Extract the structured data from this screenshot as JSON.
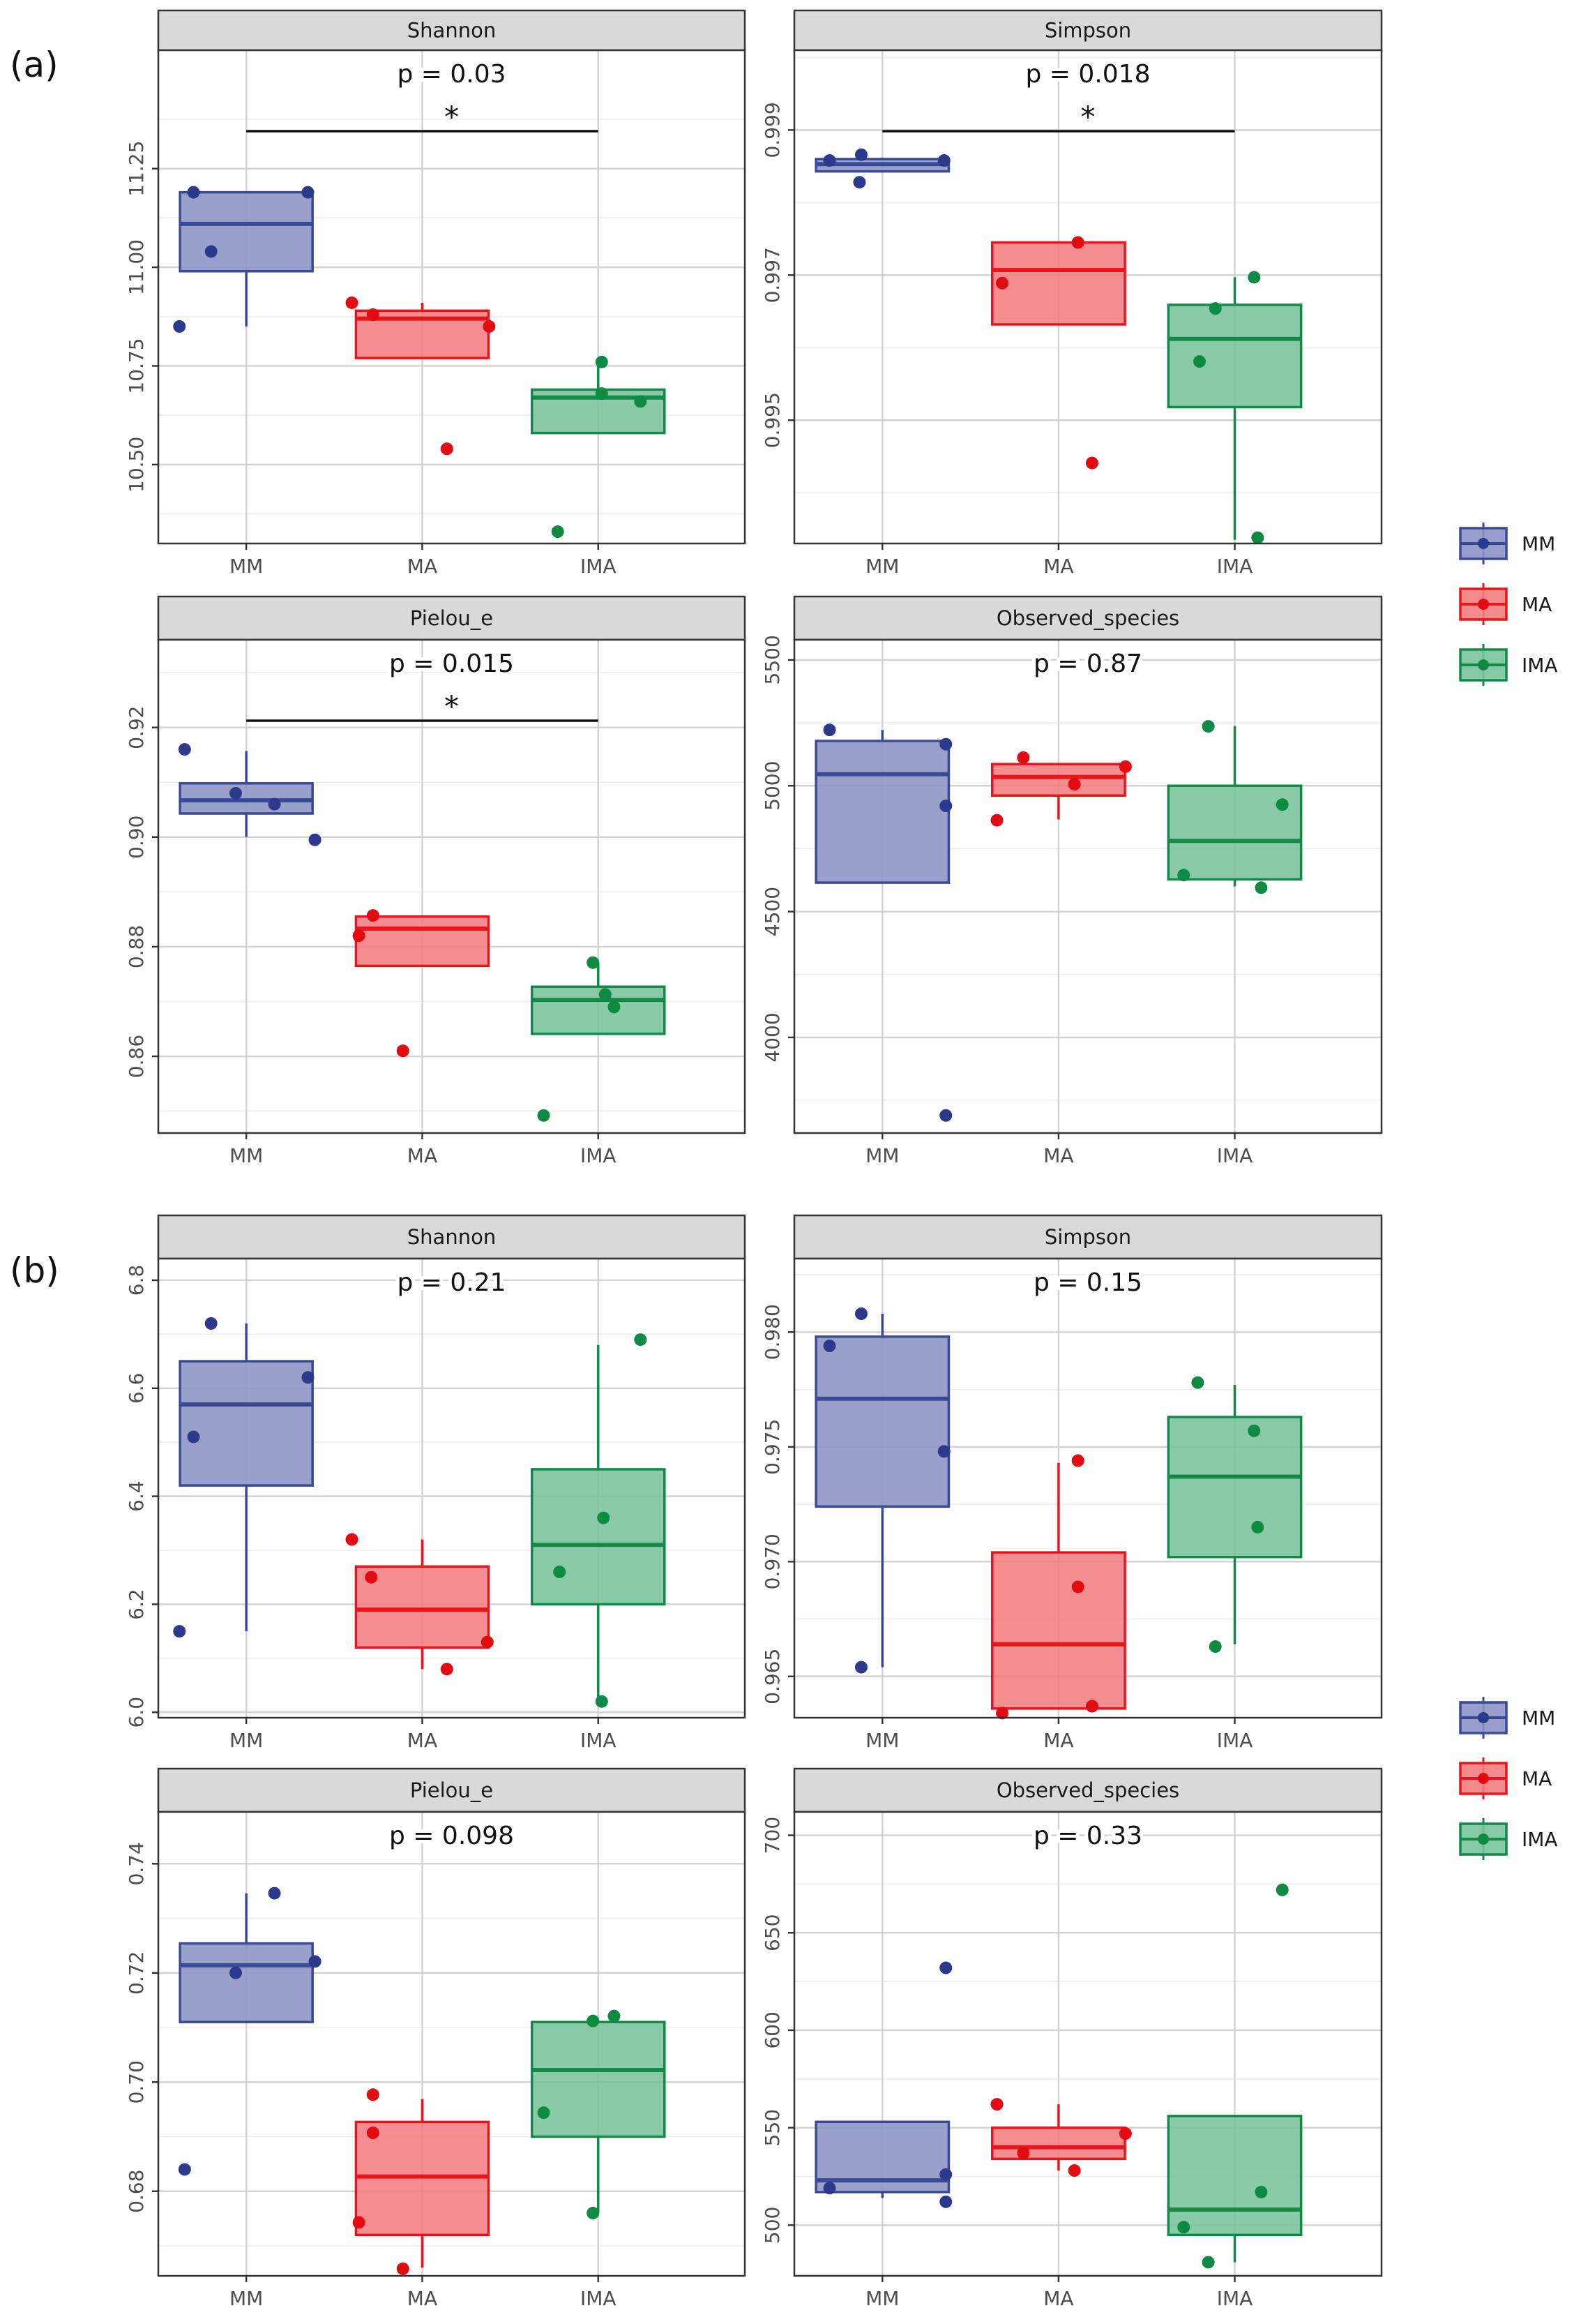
{
  "figure": {
    "part_labels": [
      "(a)",
      "(b)"
    ],
    "groups": [
      "MM",
      "MA",
      "IMA"
    ],
    "colors": {
      "MM": {
        "fill": "#8c93c5",
        "stroke": "#3b4a96",
        "point": "#2d3a8c"
      },
      "MA": {
        "fill": "#f27d80",
        "stroke": "#e8161c",
        "point": "#e20b12"
      },
      "IMA": {
        "fill": "#79c49b",
        "stroke": "#14894a",
        "point": "#0f8a45"
      }
    },
    "legend": [
      {
        "group": "MM",
        "label": "MM"
      },
      {
        "group": "MA",
        "label": "MA"
      },
      {
        "group": "IMA",
        "label": "IMA"
      }
    ],
    "significance_marker": "*"
  },
  "chart_data": [
    {
      "type": "boxplot",
      "part": "(a)",
      "title": "Shannon",
      "pvalue": "p = 0.03",
      "significant": true,
      "ylim": [
        10.3,
        11.55
      ],
      "yticks": [
        10.5,
        10.75,
        11.0,
        11.25
      ],
      "tick_labels": [
        "10.50",
        "10.75",
        "11.00",
        "11.25"
      ],
      "categories": [
        "MM",
        "MA",
        "IMA"
      ],
      "boxes": [
        {
          "group": "MM",
          "lower_whisker": 10.85,
          "q1": 10.99,
          "median": 11.11,
          "q3": 11.19,
          "upper_whisker": 11.19,
          "points": [
            {
              "x": -0.38,
              "y": 10.85
            },
            {
              "x": -0.3,
              "y": 11.19
            },
            {
              "x": -0.2,
              "y": 11.04
            },
            {
              "x": 0.35,
              "y": 11.19
            }
          ]
        },
        {
          "group": "MA",
          "lower_whisker": 10.77,
          "q1": 10.77,
          "median": 10.87,
          "q3": 10.89,
          "upper_whisker": 10.91,
          "points": [
            {
              "x": -0.4,
              "y": 10.91
            },
            {
              "x": -0.28,
              "y": 10.88
            },
            {
              "x": 0.14,
              "y": 10.54
            },
            {
              "x": 0.38,
              "y": 10.85
            }
          ]
        },
        {
          "group": "IMA",
          "lower_whisker": 10.58,
          "q1": 10.58,
          "median": 10.67,
          "q3": 10.69,
          "upper_whisker": 10.76,
          "points": [
            {
              "x": -0.23,
              "y": 10.33
            },
            {
              "x": 0.02,
              "y": 10.76
            },
            {
              "x": 0.02,
              "y": 10.68
            },
            {
              "x": 0.24,
              "y": 10.66
            }
          ]
        }
      ]
    },
    {
      "type": "boxplot",
      "part": "(a)",
      "title": "Simpson",
      "pvalue": "p = 0.018",
      "significant": true,
      "ylim": [
        0.9933,
        1.0001
      ],
      "yticks": [
        0.995,
        0.997,
        0.999
      ],
      "tick_labels": [
        "0.995",
        "0.997",
        "0.999"
      ],
      "categories": [
        "MM",
        "MA",
        "IMA"
      ],
      "boxes": [
        {
          "group": "MM",
          "lower_whisker": 0.99843,
          "q1": 0.99843,
          "median": 0.99853,
          "q3": 0.9986,
          "upper_whisker": 0.99862,
          "points": [
            {
              "x": -0.3,
              "y": 0.99858
            },
            {
              "x": -0.13,
              "y": 0.99828
            },
            {
              "x": -0.12,
              "y": 0.99866
            },
            {
              "x": 0.35,
              "y": 0.99858
            }
          ]
        },
        {
          "group": "MA",
          "lower_whisker": 0.99632,
          "q1": 0.99632,
          "median": 0.99707,
          "q3": 0.99745,
          "upper_whisker": 0.99745,
          "points": [
            {
              "x": -0.32,
              "y": 0.99689
            },
            {
              "x": 0.11,
              "y": 0.99745
            },
            {
              "x": 0.19,
              "y": 0.99441
            }
          ]
        },
        {
          "group": "IMA",
          "lower_whisker": 0.99335,
          "q1": 0.99518,
          "median": 0.99612,
          "q3": 0.99659,
          "upper_whisker": 0.99697,
          "points": [
            {
              "x": -0.2,
              "y": 0.99581
            },
            {
              "x": -0.11,
              "y": 0.99654
            },
            {
              "x": 0.11,
              "y": 0.99697
            },
            {
              "x": 0.13,
              "y": 0.99338
            }
          ]
        }
      ]
    },
    {
      "type": "boxplot",
      "part": "(a)",
      "title": "Pielou_e",
      "pvalue": "p = 0.015",
      "significant": true,
      "ylim": [
        0.846,
        0.936
      ],
      "yticks": [
        0.86,
        0.88,
        0.9,
        0.92
      ],
      "tick_labels": [
        "0.86",
        "0.88",
        "0.90",
        "0.92"
      ],
      "categories": [
        "MM",
        "MA",
        "IMA"
      ],
      "boxes": [
        {
          "group": "MM",
          "lower_whisker": 0.9,
          "q1": 0.9043,
          "median": 0.9067,
          "q3": 0.9098,
          "upper_whisker": 0.9157,
          "points": [
            {
              "x": -0.35,
              "y": 0.916
            },
            {
              "x": -0.06,
              "y": 0.908
            },
            {
              "x": 0.16,
              "y": 0.906
            },
            {
              "x": 0.39,
              "y": 0.8995
            }
          ]
        },
        {
          "group": "MA",
          "lower_whisker": 0.8765,
          "q1": 0.8765,
          "median": 0.8833,
          "q3": 0.8855,
          "upper_whisker": 0.8855,
          "points": [
            {
              "x": -0.36,
              "y": 0.882
            },
            {
              "x": -0.28,
              "y": 0.8857
            },
            {
              "x": -0.11,
              "y": 0.861
            }
          ]
        },
        {
          "group": "IMA",
          "lower_whisker": 0.8641,
          "q1": 0.8641,
          "median": 0.8703,
          "q3": 0.8727,
          "upper_whisker": 0.8771,
          "points": [
            {
              "x": -0.31,
              "y": 0.8492
            },
            {
              "x": -0.03,
              "y": 0.8771
            },
            {
              "x": 0.04,
              "y": 0.8713
            },
            {
              "x": 0.09,
              "y": 0.869
            }
          ]
        }
      ]
    },
    {
      "type": "boxplot",
      "part": "(a)",
      "title": "Observed_species",
      "pvalue": "p = 0.87",
      "significant": false,
      "ylim": [
        3620,
        5580
      ],
      "yticks": [
        4000,
        4500,
        5000,
        5500
      ],
      "tick_labels": [
        "4000",
        "4500",
        "5000",
        "5500"
      ],
      "categories": [
        "MM",
        "MA",
        "IMA"
      ],
      "boxes": [
        {
          "group": "MM",
          "lower_whisker": 4615,
          "q1": 4615,
          "median": 5046,
          "q3": 5178,
          "upper_whisker": 5222,
          "points": [
            {
              "x": -0.3,
              "y": 5222
            },
            {
              "x": 0.36,
              "y": 5165
            },
            {
              "x": 0.36,
              "y": 4920
            },
            {
              "x": 0.36,
              "y": 3690
            }
          ]
        },
        {
          "group": "MA",
          "lower_whisker": 4866,
          "q1": 4961,
          "median": 5035,
          "q3": 5086,
          "upper_whisker": 5086,
          "points": [
            {
              "x": -0.35,
              "y": 4863
            },
            {
              "x": -0.2,
              "y": 5112
            },
            {
              "x": 0.09,
              "y": 5006
            },
            {
              "x": 0.38,
              "y": 5076
            }
          ]
        },
        {
          "group": "IMA",
          "lower_whisker": 4600,
          "q1": 4628,
          "median": 4781,
          "q3": 5000,
          "upper_whisker": 5237,
          "points": [
            {
              "x": -0.29,
              "y": 4645
            },
            {
              "x": -0.15,
              "y": 5236
            },
            {
              "x": 0.15,
              "y": 4595
            },
            {
              "x": 0.27,
              "y": 4925
            }
          ]
        }
      ]
    },
    {
      "type": "boxplot",
      "part": "(b)",
      "title": "Shannon",
      "pvalue": "p = 0.21",
      "significant": false,
      "ylim": [
        5.99,
        6.84
      ],
      "yticks": [
        6.0,
        6.2,
        6.4,
        6.6,
        6.8
      ],
      "tick_labels": [
        "6.0",
        "6.2",
        "6.4",
        "6.6",
        "6.8"
      ],
      "categories": [
        "MM",
        "MA",
        "IMA"
      ],
      "boxes": [
        {
          "group": "MM",
          "lower_whisker": 6.15,
          "q1": 6.42,
          "median": 6.57,
          "q3": 6.65,
          "upper_whisker": 6.72,
          "points": [
            {
              "x": -0.38,
              "y": 6.15
            },
            {
              "x": -0.3,
              "y": 6.51
            },
            {
              "x": -0.2,
              "y": 6.72
            },
            {
              "x": 0.35,
              "y": 6.62
            }
          ]
        },
        {
          "group": "MA",
          "lower_whisker": 6.08,
          "q1": 6.12,
          "median": 6.19,
          "q3": 6.27,
          "upper_whisker": 6.32,
          "points": [
            {
              "x": -0.4,
              "y": 6.32
            },
            {
              "x": -0.29,
              "y": 6.25
            },
            {
              "x": 0.14,
              "y": 6.08
            },
            {
              "x": 0.37,
              "y": 6.13
            }
          ]
        },
        {
          "group": "IMA",
          "lower_whisker": 6.02,
          "q1": 6.2,
          "median": 6.31,
          "q3": 6.45,
          "upper_whisker": 6.68,
          "points": [
            {
              "x": -0.22,
              "y": 6.26
            },
            {
              "x": 0.02,
              "y": 6.02
            },
            {
              "x": 0.03,
              "y": 6.36
            },
            {
              "x": 0.24,
              "y": 6.69
            }
          ]
        }
      ]
    },
    {
      "type": "boxplot",
      "part": "(b)",
      "title": "Simpson",
      "pvalue": "p = 0.15",
      "significant": false,
      "ylim": [
        0.9632,
        0.9832
      ],
      "yticks": [
        0.965,
        0.97,
        0.975,
        0.98
      ],
      "tick_labels": [
        "0.965",
        "0.970",
        "0.975",
        "0.980"
      ],
      "categories": [
        "MM",
        "MA",
        "IMA"
      ],
      "boxes": [
        {
          "group": "MM",
          "lower_whisker": 0.9654,
          "q1": 0.9724,
          "median": 0.9771,
          "q3": 0.9798,
          "upper_whisker": 0.9808,
          "points": [
            {
              "x": -0.3,
              "y": 0.9794
            },
            {
              "x": -0.12,
              "y": 0.9808
            },
            {
              "x": -0.12,
              "y": 0.9654
            },
            {
              "x": 0.35,
              "y": 0.9748
            }
          ]
        },
        {
          "group": "MA",
          "lower_whisker": 0.9636,
          "q1": 0.9636,
          "median": 0.9664,
          "q3": 0.9704,
          "upper_whisker": 0.9743,
          "points": [
            {
              "x": -0.32,
              "y": 0.9634
            },
            {
              "x": 0.11,
              "y": 0.9744
            },
            {
              "x": 0.11,
              "y": 0.9689
            },
            {
              "x": 0.19,
              "y": 0.9637
            }
          ]
        },
        {
          "group": "IMA",
          "lower_whisker": 0.9664,
          "q1": 0.9702,
          "median": 0.9737,
          "q3": 0.9763,
          "upper_whisker": 0.9777,
          "points": [
            {
              "x": -0.21,
              "y": 0.9778
            },
            {
              "x": -0.11,
              "y": 0.9663
            },
            {
              "x": 0.11,
              "y": 0.9757
            },
            {
              "x": 0.13,
              "y": 0.9715
            }
          ]
        }
      ]
    },
    {
      "type": "boxplot",
      "part": "(b)",
      "title": "Pielou_e",
      "pvalue": "p = 0.098",
      "significant": false,
      "ylim": [
        0.6645,
        0.7495
      ],
      "yticks": [
        0.68,
        0.7,
        0.72,
        0.74
      ],
      "tick_labels": [
        "0.68",
        "0.70",
        "0.72",
        "0.74"
      ],
      "categories": [
        "MM",
        "MA",
        "IMA"
      ],
      "boxes": [
        {
          "group": "MM",
          "lower_whisker": 0.711,
          "q1": 0.711,
          "median": 0.7214,
          "q3": 0.7254,
          "upper_whisker": 0.7346,
          "points": [
            {
              "x": -0.35,
              "y": 0.684
            },
            {
              "x": -0.06,
              "y": 0.72
            },
            {
              "x": 0.16,
              "y": 0.7346
            },
            {
              "x": 0.39,
              "y": 0.7221
            }
          ]
        },
        {
          "group": "MA",
          "lower_whisker": 0.666,
          "q1": 0.672,
          "median": 0.6827,
          "q3": 0.6927,
          "upper_whisker": 0.6969,
          "points": [
            {
              "x": -0.36,
              "y": 0.6743
            },
            {
              "x": -0.28,
              "y": 0.6907
            },
            {
              "x": -0.28,
              "y": 0.6977
            },
            {
              "x": -0.11,
              "y": 0.6658
            }
          ]
        },
        {
          "group": "IMA",
          "lower_whisker": 0.676,
          "q1": 0.69,
          "median": 0.7022,
          "q3": 0.711,
          "upper_whisker": 0.711,
          "points": [
            {
              "x": -0.31,
              "y": 0.6944
            },
            {
              "x": -0.03,
              "y": 0.7112
            },
            {
              "x": -0.03,
              "y": 0.676
            },
            {
              "x": 0.09,
              "y": 0.7121
            }
          ]
        }
      ]
    },
    {
      "type": "boxplot",
      "part": "(b)",
      "title": "Observed_species",
      "pvalue": "p = 0.33",
      "significant": false,
      "ylim": [
        474,
        712
      ],
      "yticks": [
        500,
        550,
        600,
        650,
        700
      ],
      "tick_labels": [
        "500",
        "550",
        "600",
        "650",
        "700"
      ],
      "categories": [
        "MM",
        "MA",
        "IMA"
      ],
      "boxes": [
        {
          "group": "MM",
          "lower_whisker": 514,
          "q1": 517,
          "median": 523,
          "q3": 553,
          "upper_whisker": 553,
          "points": [
            {
              "x": -0.3,
              "y": 519
            },
            {
              "x": 0.36,
              "y": 632
            },
            {
              "x": 0.36,
              "y": 526
            },
            {
              "x": 0.36,
              "y": 512
            }
          ]
        },
        {
          "group": "MA",
          "lower_whisker": 528,
          "q1": 534,
          "median": 540,
          "q3": 550,
          "upper_whisker": 562,
          "points": [
            {
              "x": -0.35,
              "y": 562
            },
            {
              "x": -0.2,
              "y": 537
            },
            {
              "x": 0.09,
              "y": 528
            },
            {
              "x": 0.38,
              "y": 547
            }
          ]
        },
        {
          "group": "IMA",
          "lower_whisker": 481,
          "q1": 495,
          "median": 508,
          "q3": 556,
          "upper_whisker": 556,
          "points": [
            {
              "x": -0.29,
              "y": 499
            },
            {
              "x": -0.15,
              "y": 481
            },
            {
              "x": 0.15,
              "y": 517
            },
            {
              "x": 0.27,
              "y": 672
            }
          ]
        }
      ]
    }
  ]
}
